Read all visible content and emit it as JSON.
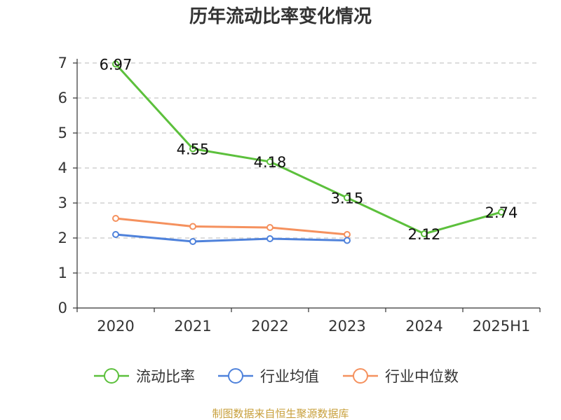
{
  "chart_data": {
    "type": "line",
    "title": "历年流动比率变化情况",
    "xlabel": "",
    "ylabel": "",
    "categories": [
      "2020",
      "2021",
      "2022",
      "2023",
      "2024",
      "2025H1"
    ],
    "ylim": [
      0,
      7
    ],
    "yticks": [
      "0",
      "1",
      "2",
      "3",
      "4",
      "5",
      "6",
      "7"
    ],
    "grid": true,
    "legend_position": "bottom",
    "series": [
      {
        "name": "流动比率",
        "color": "#5cc03c",
        "values": [
          6.97,
          4.55,
          4.18,
          3.15,
          2.12,
          2.74
        ],
        "labels": [
          "6.97",
          "4.55",
          "4.18",
          "3.15",
          "2.12",
          "2.74"
        ]
      },
      {
        "name": "行业均值",
        "color": "#4f82db",
        "values": [
          2.1,
          1.9,
          1.98,
          1.93,
          null,
          null
        ]
      },
      {
        "name": "行业中位数",
        "color": "#f5915e",
        "values": [
          2.56,
          2.33,
          2.3,
          2.1,
          null,
          null
        ]
      }
    ]
  },
  "footer": {
    "source_text": "制图数据来自恒生聚源数据库",
    "source_color": "#c8a03c"
  }
}
